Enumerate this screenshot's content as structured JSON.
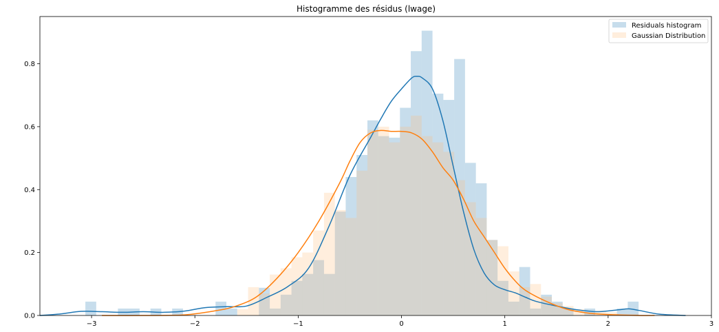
{
  "chart_data": {
    "type": "bar",
    "title": "Histogramme des résidus (lwage)",
    "xlabel": "",
    "ylabel": "",
    "xlim": [
      -3.5,
      3.0
    ],
    "ylim": [
      0,
      0.95
    ],
    "xticks": [
      -3,
      -2,
      -1,
      0,
      1,
      2,
      3
    ],
    "xtick_labels": [
      "−3",
      "−2",
      "−1",
      "0",
      "1",
      "2",
      "3"
    ],
    "yticks": [
      0.0,
      0.2,
      0.4,
      0.6,
      0.8
    ],
    "ytick_labels": [
      "0.0",
      "0.2",
      "0.4",
      "0.6",
      "0.8"
    ],
    "grid": false,
    "legend_position": "top-right",
    "colors": {
      "residuals_bar": "#1f77b4",
      "residuals_bar_opacity": 0.25,
      "gaussian_bar": "#ffbb78",
      "gaussian_bar_opacity": 0.25,
      "residuals_kde": "#1f77b4",
      "gaussian_kde": "#ff7f0e"
    },
    "series": [
      {
        "name": "Residuals histogram",
        "kind": "histogram",
        "bin_width": 0.105,
        "bins": [
          {
            "x0": -3.06,
            "value": 0.044
          },
          {
            "x0": -2.955,
            "value": 0.0
          },
          {
            "x0": -2.85,
            "value": 0.0
          },
          {
            "x0": -2.745,
            "value": 0.022
          },
          {
            "x0": -2.64,
            "value": 0.022
          },
          {
            "x0": -2.535,
            "value": 0.0
          },
          {
            "x0": -2.43,
            "value": 0.022
          },
          {
            "x0": -2.325,
            "value": 0.0
          },
          {
            "x0": -2.22,
            "value": 0.022
          },
          {
            "x0": -2.115,
            "value": 0.0
          },
          {
            "x0": -2.01,
            "value": 0.0
          },
          {
            "x0": -1.905,
            "value": 0.0
          },
          {
            "x0": -1.8,
            "value": 0.044
          },
          {
            "x0": -1.695,
            "value": 0.022
          },
          {
            "x0": -1.59,
            "value": 0.0
          },
          {
            "x0": -1.485,
            "value": 0.0
          },
          {
            "x0": -1.38,
            "value": 0.088
          },
          {
            "x0": -1.275,
            "value": 0.022
          },
          {
            "x0": -1.17,
            "value": 0.066
          },
          {
            "x0": -1.065,
            "value": 0.11
          },
          {
            "x0": -0.96,
            "value": 0.132
          },
          {
            "x0": -0.855,
            "value": 0.176
          },
          {
            "x0": -0.75,
            "value": 0.132
          },
          {
            "x0": -0.645,
            "value": 0.33
          },
          {
            "x0": -0.54,
            "value": 0.44
          },
          {
            "x0": -0.435,
            "value": 0.51
          },
          {
            "x0": -0.33,
            "value": 0.62
          },
          {
            "x0": -0.225,
            "value": 0.57
          },
          {
            "x0": -0.12,
            "value": 0.565
          },
          {
            "x0": -0.015,
            "value": 0.66
          },
          {
            "x0": 0.09,
            "value": 0.84
          },
          {
            "x0": 0.195,
            "value": 0.905
          },
          {
            "x0": 0.3,
            "value": 0.705
          },
          {
            "x0": 0.405,
            "value": 0.685
          },
          {
            "x0": 0.51,
            "value": 0.815
          },
          {
            "x0": 0.615,
            "value": 0.485
          },
          {
            "x0": 0.72,
            "value": 0.42
          },
          {
            "x0": 0.825,
            "value": 0.24
          },
          {
            "x0": 0.93,
            "value": 0.11
          },
          {
            "x0": 1.035,
            "value": 0.044
          },
          {
            "x0": 1.14,
            "value": 0.154
          },
          {
            "x0": 1.245,
            "value": 0.022
          },
          {
            "x0": 1.35,
            "value": 0.066
          },
          {
            "x0": 1.455,
            "value": 0.044
          },
          {
            "x0": 1.56,
            "value": 0.022
          },
          {
            "x0": 1.665,
            "value": 0.0
          },
          {
            "x0": 1.77,
            "value": 0.022
          },
          {
            "x0": 1.875,
            "value": 0.0
          },
          {
            "x0": 1.98,
            "value": 0.0
          },
          {
            "x0": 2.085,
            "value": 0.022
          },
          {
            "x0": 2.19,
            "value": 0.044
          }
        ]
      },
      {
        "name": "Gaussian Distribution",
        "kind": "histogram",
        "bin_width": 0.105,
        "bins": [
          {
            "x0": -1.59,
            "value": 0.02
          },
          {
            "x0": -1.485,
            "value": 0.09
          },
          {
            "x0": -1.38,
            "value": 0.07
          },
          {
            "x0": -1.275,
            "value": 0.13
          },
          {
            "x0": -1.17,
            "value": 0.15
          },
          {
            "x0": -1.065,
            "value": 0.185
          },
          {
            "x0": -0.96,
            "value": 0.2
          },
          {
            "x0": -0.855,
            "value": 0.27
          },
          {
            "x0": -0.75,
            "value": 0.39
          },
          {
            "x0": -0.645,
            "value": 0.335
          },
          {
            "x0": -0.54,
            "value": 0.31
          },
          {
            "x0": -0.435,
            "value": 0.46
          },
          {
            "x0": -0.33,
            "value": 0.59
          },
          {
            "x0": -0.225,
            "value": 0.6
          },
          {
            "x0": -0.12,
            "value": 0.55
          },
          {
            "x0": -0.015,
            "value": 0.6
          },
          {
            "x0": 0.09,
            "value": 0.635
          },
          {
            "x0": 0.195,
            "value": 0.57
          },
          {
            "x0": 0.3,
            "value": 0.55
          },
          {
            "x0": 0.405,
            "value": 0.52
          },
          {
            "x0": 0.51,
            "value": 0.43
          },
          {
            "x0": 0.615,
            "value": 0.36
          },
          {
            "x0": 0.72,
            "value": 0.31
          },
          {
            "x0": 0.825,
            "value": 0.24
          },
          {
            "x0": 0.93,
            "value": 0.22
          },
          {
            "x0": 1.035,
            "value": 0.14
          },
          {
            "x0": 1.14,
            "value": 0.09
          },
          {
            "x0": 1.245,
            "value": 0.1
          },
          {
            "x0": 1.35,
            "value": 0.06
          },
          {
            "x0": 1.455,
            "value": 0.04
          },
          {
            "x0": 1.56,
            "value": 0.03
          },
          {
            "x0": 1.665,
            "value": 0.02
          },
          {
            "x0": 1.77,
            "value": 0.01
          },
          {
            "x0": 1.875,
            "value": 0.015
          },
          {
            "x0": 1.98,
            "value": 0.01
          },
          {
            "x0": 2.085,
            "value": 0.005
          },
          {
            "x0": 2.19,
            "value": 0.005
          }
        ]
      },
      {
        "kind": "kde-line",
        "color_ref": "residuals_kde",
        "x": [
          -3.5,
          -3.3,
          -3.1,
          -2.9,
          -2.7,
          -2.5,
          -2.3,
          -2.1,
          -1.9,
          -1.7,
          -1.5,
          -1.3,
          -1.1,
          -0.9,
          -0.7,
          -0.5,
          -0.3,
          -0.2,
          -0.1,
          0.0,
          0.1,
          0.15,
          0.2,
          0.3,
          0.4,
          0.5,
          0.6,
          0.7,
          0.8,
          0.9,
          1.0,
          1.1,
          1.2,
          1.3,
          1.5,
          1.7,
          1.9,
          2.1,
          2.2,
          2.3,
          2.5,
          2.75
        ],
        "y": [
          0.0,
          0.005,
          0.013,
          0.012,
          0.01,
          0.012,
          0.01,
          0.014,
          0.025,
          0.028,
          0.03,
          0.058,
          0.092,
          0.15,
          0.285,
          0.445,
          0.565,
          0.625,
          0.68,
          0.72,
          0.755,
          0.76,
          0.755,
          0.72,
          0.62,
          0.475,
          0.33,
          0.21,
          0.135,
          0.097,
          0.082,
          0.072,
          0.058,
          0.045,
          0.03,
          0.018,
          0.012,
          0.018,
          0.021,
          0.016,
          0.004,
          0.0
        ]
      },
      {
        "kind": "kde-line",
        "color_ref": "gaussian_kde",
        "x": [
          -2.9,
          -2.5,
          -2.1,
          -1.8,
          -1.6,
          -1.4,
          -1.2,
          -1.0,
          -0.8,
          -0.6,
          -0.5,
          -0.4,
          -0.3,
          -0.2,
          -0.1,
          0.0,
          0.1,
          0.2,
          0.3,
          0.4,
          0.5,
          0.6,
          0.7,
          0.8,
          0.9,
          1.0,
          1.1,
          1.2,
          1.4,
          1.6,
          1.8,
          2.0,
          2.3,
          2.45
        ],
        "y": [
          0.0,
          0.0,
          0.002,
          0.015,
          0.03,
          0.06,
          0.12,
          0.2,
          0.3,
          0.42,
          0.49,
          0.55,
          0.58,
          0.588,
          0.585,
          0.585,
          0.58,
          0.56,
          0.52,
          0.47,
          0.43,
          0.37,
          0.3,
          0.25,
          0.2,
          0.15,
          0.11,
          0.08,
          0.045,
          0.02,
          0.008,
          0.003,
          0.0,
          0.0
        ]
      }
    ]
  }
}
